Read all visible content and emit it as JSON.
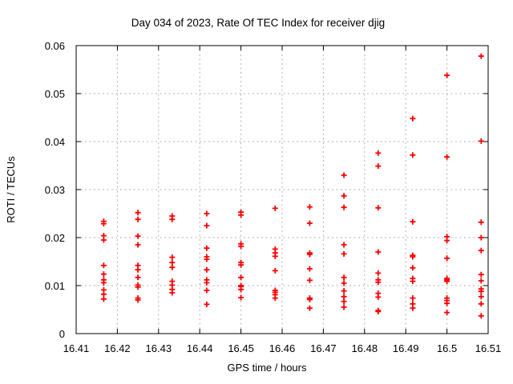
{
  "chart_data": {
    "type": "scatter",
    "title": "Day 034 of 2023, Rate Of TEC Index for receiver djig",
    "xlabel": "GPS time / hours",
    "ylabel": "ROTI / TECUs",
    "xlim": [
      16.41,
      16.51
    ],
    "ylim": [
      0,
      0.06
    ],
    "grid": true,
    "legend": false,
    "marker": {
      "shape": "plus",
      "color": "#ff0000",
      "size": 7
    },
    "grid_color": "#b3b3b3",
    "border_color": "#000000",
    "xticks": [
      16.41,
      16.42,
      16.43,
      16.44,
      16.45,
      16.46,
      16.47,
      16.48,
      16.49,
      16.5,
      16.51
    ],
    "xtick_labels": [
      "16.41",
      "16.42",
      "16.43",
      "16.44",
      "16.45",
      "16.46",
      "16.47",
      "16.48",
      "16.49",
      "16.5",
      "16.51"
    ],
    "yticks": [
      0,
      0.01,
      0.02,
      0.03,
      0.04,
      0.05,
      0.06
    ],
    "ytick_labels": [
      "0",
      "0.01",
      "0.02",
      "0.03",
      "0.04",
      "0.05",
      "0.06"
    ],
    "series": [
      {
        "name": "ROTI",
        "color": "#ff0000",
        "groups": [
          {
            "t": 16.4167,
            "values": [
              0.0234,
              0.0229,
              0.0204,
              0.0195,
              0.0142,
              0.0124,
              0.0112,
              0.0106,
              0.0091,
              0.0082,
              0.0072
            ]
          },
          {
            "t": 16.425,
            "values": [
              0.0252,
              0.0238,
              0.0203,
              0.0185,
              0.0142,
              0.0133,
              0.0117,
              0.0101,
              0.0097,
              0.0074,
              0.007
            ]
          },
          {
            "t": 16.4333,
            "values": [
              0.0245,
              0.0238,
              0.0159,
              0.0148,
              0.0138,
              0.0109,
              0.0101,
              0.0092,
              0.0085
            ]
          },
          {
            "t": 16.4417,
            "values": [
              0.025,
              0.0225,
              0.0178,
              0.016,
              0.0155,
              0.0133,
              0.0112,
              0.0106,
              0.009,
              0.0061
            ]
          },
          {
            "t": 16.45,
            "values": [
              0.0253,
              0.0247,
              0.0187,
              0.0182,
              0.0148,
              0.0143,
              0.0117,
              0.01,
              0.0098,
              0.0092,
              0.0075
            ]
          },
          {
            "t": 16.4583,
            "values": [
              0.0261,
              0.0176,
              0.0168,
              0.0161,
              0.0131,
              0.009,
              0.0086,
              0.0081,
              0.0074
            ]
          },
          {
            "t": 16.4667,
            "values": [
              0.0264,
              0.023,
              0.0168,
              0.0165,
              0.0135,
              0.0111,
              0.0074,
              0.0071,
              0.0053
            ]
          },
          {
            "t": 16.475,
            "values": [
              0.033,
              0.0287,
              0.0263,
              0.0185,
              0.0166,
              0.0117,
              0.0105,
              0.0089,
              0.0077,
              0.0067,
              0.0055
            ]
          },
          {
            "t": 16.4833,
            "values": [
              0.0376,
              0.0349,
              0.0262,
              0.017,
              0.0126,
              0.0112,
              0.0107,
              0.0084,
              0.0076,
              0.0048,
              0.0046
            ]
          },
          {
            "t": 16.4917,
            "values": [
              0.0448,
              0.0372,
              0.0233,
              0.0163,
              0.016,
              0.0137,
              0.0115,
              0.0109,
              0.0074,
              0.0062,
              0.0053
            ]
          },
          {
            "t": 16.5,
            "values": [
              0.0538,
              0.0368,
              0.0202,
              0.0194,
              0.0157,
              0.0115,
              0.0112,
              0.0109,
              0.0074,
              0.0069,
              0.0063,
              0.0044
            ]
          },
          {
            "t": 16.5083,
            "values": [
              0.0578,
              0.0401,
              0.0232,
              0.02,
              0.0173,
              0.0123,
              0.011,
              0.0093,
              0.0088,
              0.0077,
              0.0062,
              0.0037
            ]
          }
        ]
      }
    ]
  }
}
